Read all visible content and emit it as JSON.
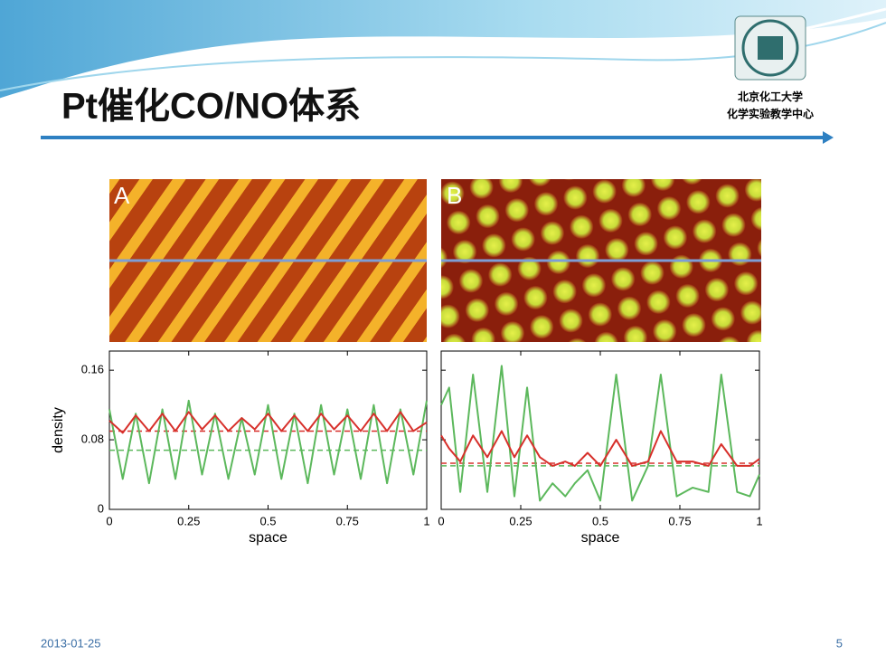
{
  "slide": {
    "title": "Pt催化CO/NO体系",
    "logo_lines": [
      "北京化工大学",
      "化学实验教学中心"
    ],
    "date": "2013-01-25",
    "page": "5"
  },
  "images": [
    {
      "label": "A"
    },
    {
      "label": "B"
    }
  ],
  "chart_data": [
    {
      "type": "line",
      "xlabel": "space",
      "ylabel": "density",
      "x": [
        0,
        0.042,
        0.083,
        0.125,
        0.167,
        0.208,
        0.25,
        0.292,
        0.333,
        0.375,
        0.417,
        0.458,
        0.5,
        0.542,
        0.583,
        0.625,
        0.667,
        0.708,
        0.75,
        0.792,
        0.833,
        0.875,
        0.917,
        0.958,
        1
      ],
      "series": [
        {
          "color": "#5cb85c",
          "values": [
            0.115,
            0.035,
            0.11,
            0.03,
            0.115,
            0.035,
            0.125,
            0.04,
            0.11,
            0.035,
            0.105,
            0.04,
            0.12,
            0.035,
            0.11,
            0.03,
            0.12,
            0.04,
            0.115,
            0.035,
            0.12,
            0.03,
            0.115,
            0.04,
            0.125
          ]
        },
        {
          "color": "#d7302b",
          "values": [
            0.102,
            0.088,
            0.108,
            0.09,
            0.11,
            0.09,
            0.112,
            0.092,
            0.108,
            0.09,
            0.105,
            0.092,
            0.11,
            0.09,
            0.108,
            0.09,
            0.11,
            0.092,
            0.108,
            0.09,
            0.11,
            0.09,
            0.112,
            0.09,
            0.1
          ]
        }
      ],
      "hlines": [
        {
          "value": 0.09,
          "color": "#d7302b"
        },
        {
          "value": 0.068,
          "color": "#5cb85c"
        }
      ],
      "xlim": [
        0,
        1
      ],
      "ylim": [
        0,
        0.182
      ],
      "xticks": [
        0,
        0.25,
        0.5,
        0.75,
        1
      ],
      "yticks": [
        0,
        0.08,
        0.16
      ],
      "ytick_labels": true
    },
    {
      "type": "line",
      "xlabel": "space",
      "x": [
        0,
        0.025,
        0.06,
        0.1,
        0.145,
        0.19,
        0.23,
        0.27,
        0.31,
        0.35,
        0.39,
        0.42,
        0.46,
        0.5,
        0.55,
        0.6,
        0.65,
        0.69,
        0.74,
        0.79,
        0.84,
        0.88,
        0.93,
        0.97,
        1
      ],
      "series": [
        {
          "color": "#5cb85c",
          "values": [
            0.12,
            0.14,
            0.02,
            0.155,
            0.02,
            0.165,
            0.015,
            0.14,
            0.01,
            0.03,
            0.015,
            0.03,
            0.045,
            0.01,
            0.155,
            0.01,
            0.05,
            0.155,
            0.015,
            0.025,
            0.02,
            0.155,
            0.02,
            0.015,
            0.04
          ]
        },
        {
          "color": "#d7302b",
          "values": [
            0.085,
            0.07,
            0.055,
            0.085,
            0.06,
            0.09,
            0.06,
            0.085,
            0.06,
            0.05,
            0.055,
            0.05,
            0.065,
            0.05,
            0.08,
            0.05,
            0.055,
            0.09,
            0.055,
            0.055,
            0.05,
            0.075,
            0.05,
            0.05,
            0.058
          ]
        }
      ],
      "hlines": [
        {
          "value": 0.053,
          "color": "#d7302b"
        },
        {
          "value": 0.05,
          "color": "#5cb85c"
        }
      ],
      "xlim": [
        0,
        1
      ],
      "ylim": [
        0,
        0.182
      ],
      "xticks": [
        0,
        0.25,
        0.5,
        0.75,
        1
      ],
      "yticks": [
        0,
        0.08,
        0.16
      ],
      "ytick_labels": false
    }
  ]
}
